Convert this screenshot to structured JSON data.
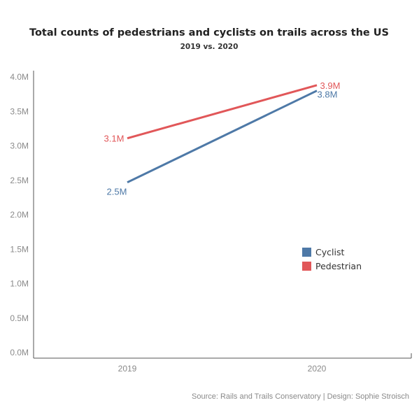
{
  "chart_data": {
    "type": "line",
    "title": "Total counts of pedestrians and cyclists on trails across the US",
    "subtitle": "2019 vs. 2020",
    "x": [
      "2019",
      "2020"
    ],
    "y_ticks": [
      "0.0M",
      "0.5M",
      "1.0M",
      "1.5M",
      "2.0M",
      "2.5M",
      "3.0M",
      "3.5M",
      "4.0M"
    ],
    "ylim": [
      0,
      4000000
    ],
    "grid": false,
    "legend_position": "right",
    "series": [
      {
        "name": "Cyclist",
        "color": "#4e79a7",
        "values": [
          2470000,
          3800000
        ],
        "labels": [
          "2.5M",
          "3.8M"
        ]
      },
      {
        "name": "Pedestrian",
        "color": "#e15759",
        "values": [
          3110000,
          3880000
        ],
        "labels": [
          "3.1M",
          "3.9M"
        ]
      }
    ],
    "source": "Source: Rails and Trails Conservatory |   Design: Sophie Stroisch"
  }
}
